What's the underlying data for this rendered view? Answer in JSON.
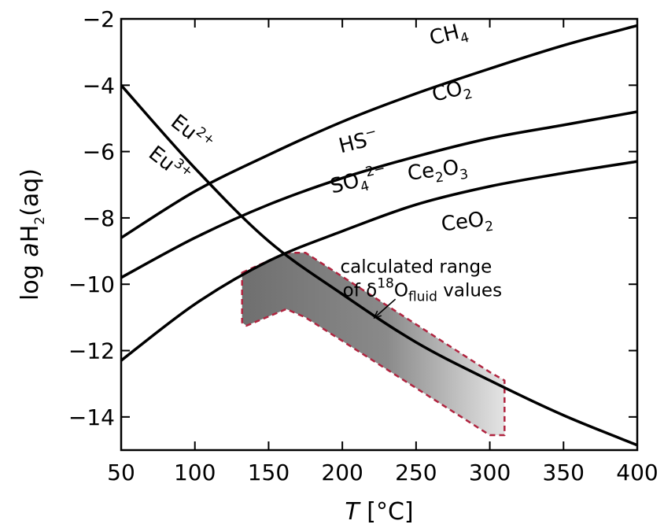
{
  "chart_data": {
    "type": "line",
    "xlabel": "T [°C]",
    "ylabel": "log aH2(aq)",
    "xlim": [
      50,
      400
    ],
    "ylim": [
      -15,
      -2
    ],
    "x_ticks": [
      50,
      100,
      150,
      200,
      250,
      300,
      350,
      400
    ],
    "y_ticks": [
      -2,
      -4,
      -6,
      -8,
      -10,
      -12,
      -14
    ],
    "x_tick_labels": [
      "50",
      "100",
      "150",
      "200",
      "250",
      "300",
      "350",
      "400"
    ],
    "y_tick_labels": [
      "−2",
      "−4",
      "−6",
      "−8",
      "−10",
      "−12",
      "−14"
    ],
    "grid": false,
    "series": [
      {
        "name": "CH4 / CO2",
        "x": [
          50,
          100,
          150,
          200,
          250,
          300,
          350,
          400
        ],
        "y": [
          -8.6,
          -7.2,
          -6.1,
          -5.1,
          -4.25,
          -3.5,
          -2.8,
          -2.2
        ]
      },
      {
        "name": "HS− / SO42−",
        "x": [
          50,
          100,
          150,
          200,
          250,
          300,
          350,
          400
        ],
        "y": [
          -9.8,
          -8.6,
          -7.6,
          -6.8,
          -6.15,
          -5.6,
          -5.2,
          -4.8
        ]
      },
      {
        "name": "Ce2O3 / CeO2",
        "x": [
          50,
          100,
          150,
          200,
          250,
          300,
          350,
          400
        ],
        "y": [
          -12.3,
          -10.6,
          -9.3,
          -8.4,
          -7.6,
          -7.05,
          -6.65,
          -6.3
        ]
      },
      {
        "name": "Eu2+ / Eu3+",
        "x": [
          50,
          100,
          150,
          200,
          250,
          300,
          350,
          400
        ],
        "y": [
          -4.0,
          -6.5,
          -8.7,
          -10.3,
          -11.75,
          -12.9,
          -13.95,
          -14.85
        ]
      }
    ],
    "line_labels": [
      {
        "id": "ch4",
        "text": "CH",
        "sub": "4",
        "x": 273,
        "y": -2.65,
        "rotate": -14
      },
      {
        "id": "co2",
        "text": "CO",
        "sub": "2",
        "x": 275,
        "y": -4.35,
        "rotate": -14
      },
      {
        "id": "hs",
        "text": "HS",
        "sup": "−",
        "x": 212,
        "y": -5.9,
        "rotate": -14
      },
      {
        "id": "so4",
        "text": "SO",
        "sub": "4",
        "sup": "2−",
        "x": 212,
        "y": -7.05,
        "rotate": -14
      },
      {
        "id": "ce2o3",
        "text": "Ce",
        "sub": "2",
        "text2": "O",
        "sub2": "3",
        "x": 265,
        "y": -6.75,
        "rotate": -7
      },
      {
        "id": "ceo2",
        "text": "CeO",
        "sub": "2",
        "x": 285,
        "y": -8.3,
        "rotate": -7
      },
      {
        "id": "eu2",
        "text": "Eu",
        "sup": "2+",
        "x": 95,
        "y": -5.6,
        "rotate": 38
      },
      {
        "id": "eu3",
        "text": "Eu",
        "sup": "3+",
        "x": 80,
        "y": -6.55,
        "rotate": 38
      }
    ],
    "region": {
      "name": "calculated range of δ18Ofluid values",
      "polygon": [
        [
          132,
          -9.65
        ],
        [
          162,
          -9.05
        ],
        [
          175,
          -9.05
        ],
        [
          300,
          -12.65
        ],
        [
          310,
          -12.9
        ],
        [
          310,
          -14.55
        ],
        [
          300,
          -14.55
        ],
        [
          175,
          -11.0
        ],
        [
          162,
          -10.75
        ],
        [
          135,
          -11.25
        ],
        [
          132,
          -11.15
        ]
      ],
      "stroke": "#b0243f",
      "fill_dark": "#6f6f6f",
      "fill_light": "#e4e4e4"
    },
    "annotation": {
      "line1": "calculated range",
      "line2_prefix": "of δ",
      "line2_sup": "18",
      "line2_mid": "O",
      "line2_sub": "fluid",
      "line2_suffix": " values",
      "text_x": 250,
      "text_y": -9.65,
      "arrow_from": [
        236,
        -10.45
      ],
      "arrow_to": [
        222,
        -11.0
      ]
    }
  }
}
